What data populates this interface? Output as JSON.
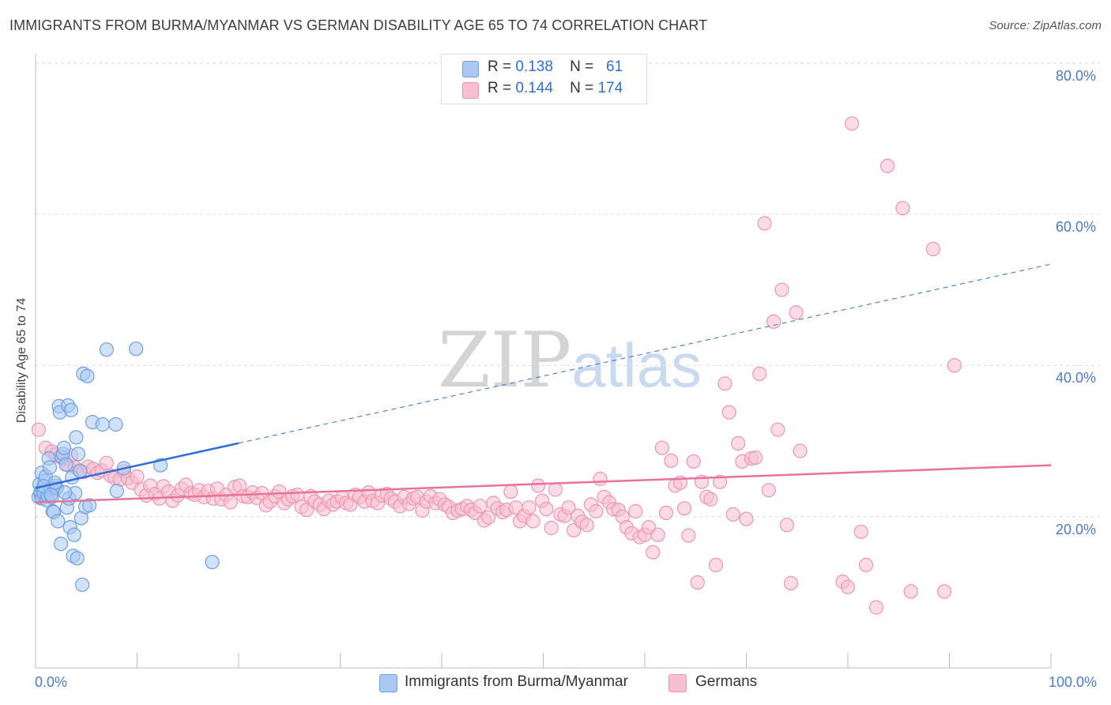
{
  "title": "IMMIGRANTS FROM BURMA/MYANMAR VS GERMAN DISABILITY AGE 65 TO 74 CORRELATION CHART",
  "source": "Source: ZipAtlas.com",
  "watermark": {
    "zip": "ZIP",
    "atlas": "atlas"
  },
  "legend_top": {
    "rows": [
      {
        "r_label": "R =",
        "r_value": "0.138",
        "n_label": "N =",
        "n_value": "61"
      },
      {
        "r_label": "R =",
        "r_value": "0.144",
        "n_label": "N =",
        "n_value": "174"
      }
    ]
  },
  "legend_bottom": [
    {
      "label": "Immigrants from Burma/Myanmar"
    },
    {
      "label": "Germans"
    }
  ],
  "colors": {
    "blue_fill": "#a9c8f2",
    "blue_stroke": "#6d9fe0",
    "blue_line": "#2f6fd6",
    "pink_fill": "#f7bfd0",
    "pink_stroke": "#ee95b3",
    "pink_line": "#e8729a",
    "grid": "#dddddd",
    "tick_text": "#4a7cc7"
  },
  "chart_data": {
    "type": "scatter",
    "title": "IMMIGRANTS FROM BURMA/MYANMAR VS GERMAN DISABILITY AGE 65 TO 74 CORRELATION CHART",
    "xlabel": "",
    "ylabel": "Disability Age 65 to 74",
    "xlim": [
      0,
      100
    ],
    "ylim": [
      0,
      82
    ],
    "x_tick_labels": [
      "0.0%",
      "100.0%"
    ],
    "y_ticks": [
      20,
      40,
      60,
      80
    ],
    "y_tick_labels": [
      "20.0%",
      "40.0%",
      "60.0%",
      "80.0%"
    ],
    "grid": true,
    "legend_position": "top-center",
    "series": [
      {
        "name": "Immigrants from Burma/Myanmar",
        "trend": {
          "x0": 0,
          "y0": 23.8,
          "x1": 100,
          "y1": 53.4,
          "solid_until_x": 20
        },
        "points": [
          [
            0.3,
            22.6
          ],
          [
            0.4,
            24.3
          ],
          [
            0.5,
            23.0
          ],
          [
            0.5,
            23.3
          ],
          [
            0.6,
            22.4
          ],
          [
            0.6,
            25.8
          ],
          [
            0.7,
            23.6
          ],
          [
            0.8,
            23.1
          ],
          [
            0.9,
            24.7
          ],
          [
            1.0,
            25.3
          ],
          [
            1.1,
            22.2
          ],
          [
            1.2,
            22.8
          ],
          [
            1.3,
            27.7
          ],
          [
            1.4,
            26.5
          ],
          [
            1.5,
            23.7
          ],
          [
            1.6,
            22.6
          ],
          [
            1.7,
            20.7
          ],
          [
            1.8,
            20.6
          ],
          [
            1.9,
            23.8
          ],
          [
            2.0,
            24.1
          ],
          [
            2.1,
            23.8
          ],
          [
            2.2,
            19.4
          ],
          [
            2.3,
            34.6
          ],
          [
            2.4,
            33.8
          ],
          [
            2.5,
            16.4
          ],
          [
            2.6,
            27.9
          ],
          [
            2.7,
            28.3
          ],
          [
            2.8,
            29.1
          ],
          [
            3.0,
            26.9
          ],
          [
            3.1,
            21.2
          ],
          [
            3.2,
            34.7
          ],
          [
            3.3,
            22.4
          ],
          [
            3.4,
            18.6
          ],
          [
            3.5,
            34.1
          ],
          [
            3.6,
            25.2
          ],
          [
            3.7,
            14.8
          ],
          [
            3.8,
            17.6
          ],
          [
            3.9,
            23.1
          ],
          [
            4.0,
            30.5
          ],
          [
            4.1,
            14.5
          ],
          [
            4.2,
            28.3
          ],
          [
            4.4,
            26.0
          ],
          [
            4.5,
            19.8
          ],
          [
            4.6,
            11.0
          ],
          [
            4.7,
            38.9
          ],
          [
            4.9,
            21.3
          ],
          [
            5.1,
            38.6
          ],
          [
            5.3,
            21.5
          ],
          [
            5.6,
            32.5
          ],
          [
            6.6,
            32.2
          ],
          [
            7.0,
            42.1
          ],
          [
            7.9,
            32.2
          ],
          [
            8.0,
            23.4
          ],
          [
            8.7,
            26.4
          ],
          [
            9.9,
            42.2
          ],
          [
            12.3,
            26.8
          ],
          [
            17.4,
            14.0
          ],
          [
            1.9,
            24.5
          ],
          [
            0.8,
            24.0
          ],
          [
            2.9,
            23.2
          ],
          [
            1.5,
            22.9
          ]
        ]
      },
      {
        "name": "Germans",
        "trend": {
          "x0": 0,
          "y0": 21.9,
          "x1": 100,
          "y1": 26.8
        },
        "points": [
          [
            0.3,
            31.5
          ],
          [
            1.0,
            29.1
          ],
          [
            1.6,
            28.6
          ],
          [
            2.0,
            28.2
          ],
          [
            2.4,
            27.9
          ],
          [
            2.8,
            27.6
          ],
          [
            3.2,
            26.8
          ],
          [
            3.5,
            28.1
          ],
          [
            3.9,
            26.5
          ],
          [
            4.3,
            26.1
          ],
          [
            4.7,
            25.9
          ],
          [
            5.2,
            26.6
          ],
          [
            5.7,
            26.3
          ],
          [
            6.1,
            25.8
          ],
          [
            6.5,
            26.1
          ],
          [
            7.0,
            27.1
          ],
          [
            7.4,
            25.4
          ],
          [
            7.8,
            25.1
          ],
          [
            8.3,
            24.9
          ],
          [
            8.7,
            26.0
          ],
          [
            9.1,
            25.1
          ],
          [
            9.5,
            24.5
          ],
          [
            10.0,
            25.3
          ],
          [
            10.4,
            23.6
          ],
          [
            10.9,
            22.8
          ],
          [
            11.3,
            24.1
          ],
          [
            11.8,
            23.0
          ],
          [
            12.2,
            22.4
          ],
          [
            12.6,
            24.0
          ],
          [
            13.1,
            23.3
          ],
          [
            13.5,
            22.1
          ],
          [
            14.0,
            22.8
          ],
          [
            14.4,
            23.7
          ],
          [
            14.8,
            24.2
          ],
          [
            15.3,
            23.1
          ],
          [
            15.7,
            22.9
          ],
          [
            16.1,
            23.5
          ],
          [
            16.6,
            22.6
          ],
          [
            17.0,
            23.4
          ],
          [
            17.5,
            22.4
          ],
          [
            17.9,
            23.7
          ],
          [
            18.3,
            22.3
          ],
          [
            18.8,
            22.9
          ],
          [
            19.2,
            21.9
          ],
          [
            19.6,
            23.9
          ],
          [
            20.1,
            24.1
          ],
          [
            20.5,
            22.7
          ],
          [
            20.9,
            22.6
          ],
          [
            21.4,
            23.2
          ],
          [
            21.8,
            22.5
          ],
          [
            22.3,
            23.1
          ],
          [
            22.7,
            21.5
          ],
          [
            23.1,
            22.0
          ],
          [
            23.6,
            22.7
          ],
          [
            24.0,
            23.3
          ],
          [
            24.5,
            21.8
          ],
          [
            24.9,
            22.3
          ],
          [
            25.3,
            22.7
          ],
          [
            25.8,
            22.9
          ],
          [
            26.2,
            21.3
          ],
          [
            26.7,
            20.9
          ],
          [
            27.1,
            22.7
          ],
          [
            27.5,
            22.0
          ],
          [
            28.0,
            21.6
          ],
          [
            28.4,
            21.0
          ],
          [
            28.9,
            22.1
          ],
          [
            29.3,
            21.6
          ],
          [
            29.7,
            22.0
          ],
          [
            30.2,
            22.5
          ],
          [
            30.6,
            21.8
          ],
          [
            31.0,
            21.6
          ],
          [
            31.5,
            22.9
          ],
          [
            31.9,
            22.6
          ],
          [
            32.4,
            22.0
          ],
          [
            32.8,
            23.2
          ],
          [
            33.2,
            22.1
          ],
          [
            33.7,
            21.8
          ],
          [
            34.1,
            22.8
          ],
          [
            34.6,
            23.0
          ],
          [
            35.0,
            22.4
          ],
          [
            35.4,
            22.0
          ],
          [
            35.9,
            21.4
          ],
          [
            36.3,
            22.6
          ],
          [
            36.8,
            21.7
          ],
          [
            37.2,
            22.4
          ],
          [
            37.6,
            22.6
          ],
          [
            38.1,
            20.8
          ],
          [
            38.5,
            22.0
          ],
          [
            38.9,
            22.7
          ],
          [
            39.4,
            21.8
          ],
          [
            39.8,
            22.3
          ],
          [
            40.3,
            21.6
          ],
          [
            40.7,
            21.3
          ],
          [
            41.1,
            20.5
          ],
          [
            41.6,
            20.8
          ],
          [
            42.0,
            21.0
          ],
          [
            42.5,
            21.4
          ],
          [
            42.9,
            20.9
          ],
          [
            43.3,
            20.5
          ],
          [
            43.8,
            21.4
          ],
          [
            44.2,
            19.5
          ],
          [
            44.6,
            19.9
          ],
          [
            45.1,
            21.8
          ],
          [
            45.5,
            21.1
          ],
          [
            46.0,
            20.6
          ],
          [
            46.4,
            20.9
          ],
          [
            46.8,
            23.3
          ],
          [
            47.3,
            21.2
          ],
          [
            47.7,
            19.4
          ],
          [
            48.1,
            20.1
          ],
          [
            48.6,
            21.2
          ],
          [
            49.0,
            19.4
          ],
          [
            49.5,
            24.1
          ],
          [
            49.9,
            22.1
          ],
          [
            50.3,
            21.0
          ],
          [
            50.8,
            18.5
          ],
          [
            51.2,
            23.6
          ],
          [
            51.7,
            20.3
          ],
          [
            52.1,
            20.1
          ],
          [
            52.5,
            21.2
          ],
          [
            53.0,
            18.2
          ],
          [
            53.4,
            20.1
          ],
          [
            53.8,
            19.3
          ],
          [
            54.3,
            18.9
          ],
          [
            54.7,
            21.6
          ],
          [
            55.2,
            20.7
          ],
          [
            55.6,
            25.0
          ],
          [
            56.0,
            22.6
          ],
          [
            56.5,
            21.9
          ],
          [
            56.9,
            21.0
          ],
          [
            57.4,
            20.9
          ],
          [
            57.8,
            20.0
          ],
          [
            58.2,
            18.6
          ],
          [
            58.7,
            17.8
          ],
          [
            59.1,
            20.7
          ],
          [
            59.5,
            17.3
          ],
          [
            60.0,
            17.6
          ],
          [
            60.4,
            18.6
          ],
          [
            60.8,
            15.3
          ],
          [
            61.3,
            17.6
          ],
          [
            61.7,
            29.1
          ],
          [
            62.1,
            20.5
          ],
          [
            62.6,
            27.4
          ],
          [
            63.0,
            24.1
          ],
          [
            63.5,
            24.5
          ],
          [
            63.9,
            21.1
          ],
          [
            64.3,
            17.5
          ],
          [
            64.8,
            27.3
          ],
          [
            65.2,
            11.3
          ],
          [
            65.6,
            24.6
          ],
          [
            66.1,
            22.6
          ],
          [
            66.5,
            22.3
          ],
          [
            67.0,
            13.6
          ],
          [
            67.4,
            24.6
          ],
          [
            67.9,
            37.6
          ],
          [
            68.3,
            33.8
          ],
          [
            68.7,
            20.3
          ],
          [
            69.2,
            29.7
          ],
          [
            69.6,
            27.3
          ],
          [
            70.0,
            19.7
          ],
          [
            70.5,
            27.7
          ],
          [
            70.9,
            27.8
          ],
          [
            71.3,
            38.9
          ],
          [
            71.8,
            58.8
          ],
          [
            72.2,
            23.5
          ],
          [
            72.7,
            45.8
          ],
          [
            73.1,
            31.5
          ],
          [
            73.5,
            50.0
          ],
          [
            74.0,
            18.9
          ],
          [
            74.4,
            11.2
          ],
          [
            74.9,
            47.0
          ],
          [
            75.3,
            28.7
          ],
          [
            79.5,
            11.4
          ],
          [
            80.0,
            10.7
          ],
          [
            80.4,
            72.0
          ],
          [
            81.3,
            18.0
          ],
          [
            81.8,
            13.6
          ],
          [
            82.8,
            8.0
          ],
          [
            83.9,
            66.4
          ],
          [
            85.4,
            60.8
          ],
          [
            86.2,
            10.1
          ],
          [
            88.4,
            55.4
          ],
          [
            89.5,
            10.1
          ],
          [
            90.5,
            40.0
          ]
        ]
      }
    ]
  }
}
